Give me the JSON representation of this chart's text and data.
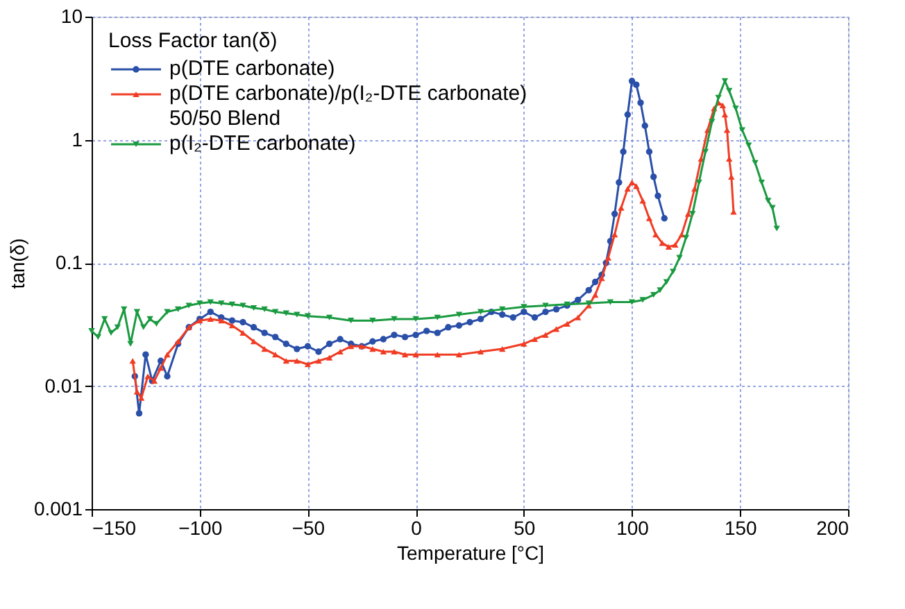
{
  "chart_data": {
    "type": "line",
    "xlabel": "Temperature [°C]",
    "ylabel": "tan(δ)",
    "legend_title": "Loss Factor tan(δ)",
    "legend": "top left",
    "log": "y",
    "grid": true,
    "xlim": [
      -150,
      200
    ],
    "xticks": [
      -150,
      -100,
      -50,
      0,
      50,
      100,
      150,
      200
    ],
    "ylim": [
      0.001,
      10
    ],
    "yticks": [
      0.001,
      0.01,
      0.1,
      1,
      10
    ],
    "series": [
      {
        "name": "p(DTE carbonate)",
        "color": "#2a4fa8",
        "marker": "circle",
        "x": [
          -130,
          -128,
          -125,
          -122,
          -118,
          -115,
          -110,
          -105,
          -100,
          -95,
          -90,
          -85,
          -80,
          -75,
          -70,
          -65,
          -60,
          -55,
          -50,
          -45,
          -40,
          -35,
          -30,
          -25,
          -20,
          -15,
          -10,
          -5,
          0,
          5,
          10,
          15,
          20,
          25,
          30,
          35,
          40,
          45,
          50,
          55,
          60,
          65,
          70,
          75,
          80,
          83,
          86,
          88,
          90,
          92,
          94,
          96,
          98,
          100,
          102,
          104,
          106,
          108,
          110,
          112,
          115
        ],
        "values": [
          0.012,
          0.006,
          0.018,
          0.011,
          0.016,
          0.012,
          0.022,
          0.03,
          0.035,
          0.04,
          0.036,
          0.034,
          0.033,
          0.03,
          0.027,
          0.025,
          0.022,
          0.02,
          0.021,
          0.019,
          0.022,
          0.024,
          0.022,
          0.021,
          0.023,
          0.024,
          0.026,
          0.025,
          0.026,
          0.028,
          0.027,
          0.03,
          0.031,
          0.033,
          0.035,
          0.04,
          0.038,
          0.036,
          0.04,
          0.036,
          0.04,
          0.042,
          0.045,
          0.05,
          0.06,
          0.07,
          0.08,
          0.1,
          0.15,
          0.25,
          0.45,
          0.8,
          1.6,
          3.0,
          2.8,
          2.0,
          1.3,
          0.8,
          0.5,
          0.35,
          0.23
        ]
      },
      {
        "name": "p(DTE carbonate)/p(I₂-DTE carbonate)\n50/50 Blend",
        "color": "#f03c24",
        "marker": "triangle",
        "x": [
          -131,
          -129,
          -127,
          -124,
          -121,
          -118,
          -115,
          -110,
          -105,
          -100,
          -95,
          -90,
          -85,
          -80,
          -75,
          -70,
          -65,
          -60,
          -55,
          -50,
          -45,
          -40,
          -35,
          -30,
          -25,
          -20,
          -15,
          -10,
          -5,
          0,
          10,
          20,
          30,
          40,
          50,
          55,
          60,
          65,
          70,
          75,
          80,
          83,
          86,
          89,
          92,
          95,
          98,
          100,
          102,
          105,
          108,
          111,
          114,
          117,
          120,
          123,
          126,
          129,
          132,
          135,
          138,
          140,
          142,
          143,
          144,
          145,
          146,
          147
        ],
        "values": [
          0.016,
          0.009,
          0.008,
          0.012,
          0.011,
          0.014,
          0.018,
          0.023,
          0.03,
          0.034,
          0.035,
          0.034,
          0.031,
          0.027,
          0.023,
          0.02,
          0.018,
          0.016,
          0.016,
          0.015,
          0.016,
          0.017,
          0.019,
          0.021,
          0.021,
          0.02,
          0.019,
          0.019,
          0.018,
          0.018,
          0.018,
          0.018,
          0.019,
          0.02,
          0.022,
          0.024,
          0.026,
          0.029,
          0.032,
          0.036,
          0.045,
          0.055,
          0.075,
          0.11,
          0.17,
          0.28,
          0.4,
          0.45,
          0.42,
          0.32,
          0.23,
          0.17,
          0.145,
          0.135,
          0.14,
          0.17,
          0.25,
          0.4,
          0.7,
          1.2,
          1.8,
          2.0,
          1.9,
          1.6,
          1.2,
          0.7,
          0.5,
          0.26
        ]
      },
      {
        "name": "p(I₂-DTE carbonate)",
        "color": "#1a9a40",
        "marker": "triangle-down",
        "x": [
          -150,
          -147,
          -144,
          -141,
          -138,
          -135,
          -132,
          -129,
          -126,
          -123,
          -120,
          -115,
          -110,
          -105,
          -100,
          -95,
          -90,
          -85,
          -80,
          -75,
          -70,
          -65,
          -60,
          -55,
          -50,
          -40,
          -30,
          -20,
          -10,
          0,
          10,
          20,
          30,
          40,
          50,
          60,
          70,
          80,
          90,
          100,
          105,
          110,
          113,
          116,
          119,
          122,
          125,
          128,
          131,
          134,
          137,
          140,
          143,
          145,
          148,
          151,
          154,
          157,
          160,
          163,
          165,
          167
        ],
        "values": [
          0.028,
          0.025,
          0.035,
          0.027,
          0.03,
          0.042,
          0.022,
          0.04,
          0.03,
          0.035,
          0.032,
          0.04,
          0.042,
          0.045,
          0.047,
          0.048,
          0.047,
          0.046,
          0.045,
          0.043,
          0.042,
          0.04,
          0.039,
          0.038,
          0.037,
          0.036,
          0.034,
          0.034,
          0.035,
          0.035,
          0.036,
          0.038,
          0.04,
          0.042,
          0.044,
          0.045,
          0.046,
          0.047,
          0.048,
          0.048,
          0.05,
          0.055,
          0.06,
          0.07,
          0.085,
          0.11,
          0.16,
          0.25,
          0.45,
          0.8,
          1.4,
          2.2,
          3.0,
          2.5,
          1.8,
          1.2,
          0.9,
          0.65,
          0.45,
          0.32,
          0.28,
          0.19
        ]
      }
    ]
  }
}
